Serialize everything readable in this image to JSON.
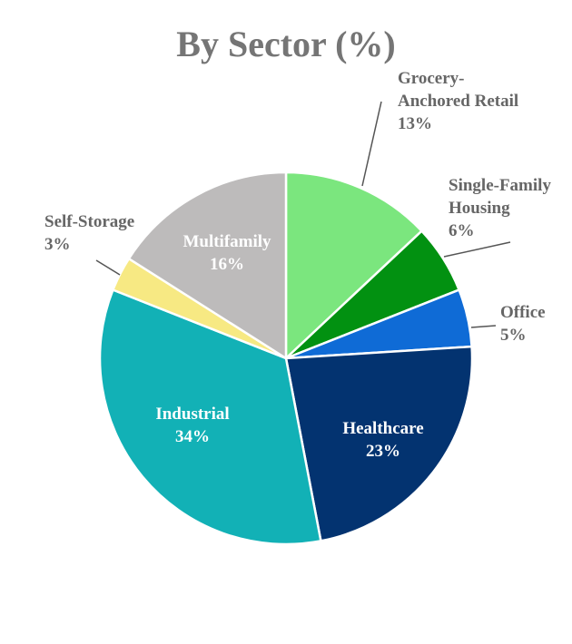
{
  "chart_data": {
    "type": "pie",
    "title": "By Sector (%)",
    "slices": [
      {
        "label": "Grocery-Anchored Retail",
        "label_lines": [
          "Grocery-",
          "Anchored Retail",
          "13%"
        ],
        "value": 13,
        "color": "#7be67e"
      },
      {
        "label": "Single-Family Housing",
        "label_lines": [
          "Single-Family",
          "Housing",
          "6%"
        ],
        "value": 6,
        "color": "#029111"
      },
      {
        "label": "Office",
        "label_lines": [
          "Office",
          "5%"
        ],
        "value": 5,
        "color": "#0f6bd6"
      },
      {
        "label": "Healthcare",
        "label_lines": [
          "Healthcare",
          "23%"
        ],
        "value": 23,
        "color": "#033370"
      },
      {
        "label": "Industrial",
        "label_lines": [
          "Industrial",
          "34%"
        ],
        "value": 34,
        "color": "#12b1b6"
      },
      {
        "label": "Self-Storage",
        "label_lines": [
          "Self-Storage",
          "3%"
        ],
        "value": 3,
        "color": "#f7e983"
      },
      {
        "label": "Multifamily",
        "label_lines": [
          "Multifamily",
          "16%"
        ],
        "value": 16,
        "color": "#bdbbbb"
      }
    ],
    "start_angle_deg": 0,
    "direction": "clockwise"
  }
}
